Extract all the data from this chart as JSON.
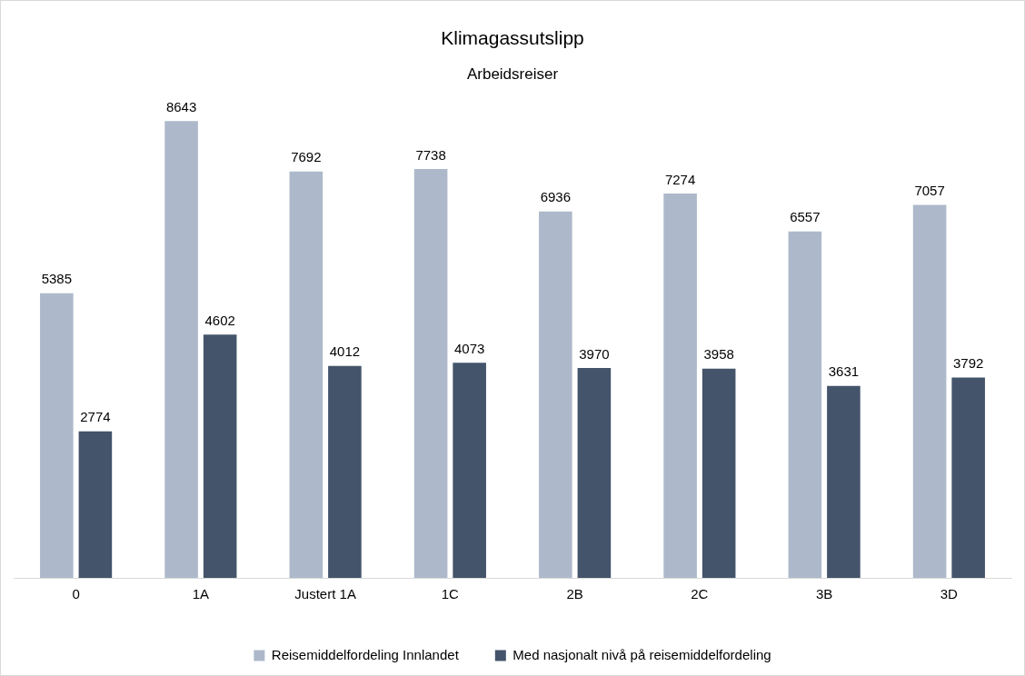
{
  "chart_data": {
    "type": "bar",
    "title": "Klimagassutslipp",
    "subtitle": "Arbeidsreiser",
    "categories": [
      "0",
      "1A",
      "Justert 1A",
      "1C",
      "2B",
      "2C",
      "3B",
      "3D"
    ],
    "series": [
      {
        "name": "Reisemiddelfordeling Innlandet",
        "color": "#adb9ca",
        "values": [
          5385,
          8643,
          7692,
          7738,
          6936,
          7274,
          6557,
          7057
        ]
      },
      {
        "name": "Med nasjonalt nivå på reisemiddelfordeling",
        "color": "#44546a",
        "values": [
          2774,
          4602,
          4012,
          4073,
          3970,
          3958,
          3631,
          3792
        ]
      }
    ],
    "data_labels": true,
    "legend": "bottom",
    "grid": false
  }
}
